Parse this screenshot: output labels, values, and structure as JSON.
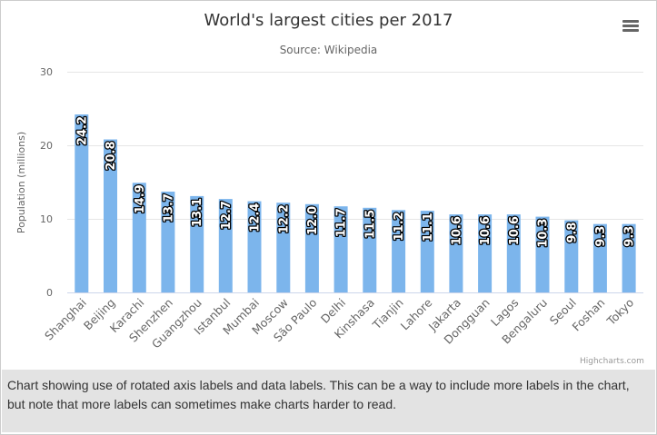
{
  "title": "World's largest cities per 2017",
  "subtitle": "Source: Wikipedia",
  "credits": "Highcharts.com",
  "caption": "Chart showing use of rotated axis labels and data labels. This can be a way to include more labels in the chart, but note that more labels can sometimes make charts harder to read.",
  "menu_icon": "hamburger-menu-icon",
  "colors": {
    "bar": "#7cb5ec",
    "data_label": "#ffffff",
    "data_label_outline": "#000000",
    "grid": "#e6e6e6",
    "axis_text": "#666666",
    "caption_bg": "#e3e3e3"
  },
  "chart_data": {
    "type": "bar",
    "title": "World's largest cities per 2017",
    "subtitle": "Source: Wikipedia",
    "xlabel": "",
    "ylabel": "Population (millions)",
    "ylim": [
      0,
      30
    ],
    "yticks": [
      0,
      10,
      20,
      30
    ],
    "grid": true,
    "legend": "none",
    "categories": [
      "Shanghai",
      "Beijing",
      "Karachi",
      "Shenzhen",
      "Guangzhou",
      "Istanbul",
      "Mumbai",
      "Moscow",
      "São Paulo",
      "Delhi",
      "Kinshasa",
      "Tianjin",
      "Lahore",
      "Jakarta",
      "Dongguan",
      "Lagos",
      "Bengaluru",
      "Seoul",
      "Foshan",
      "Tokyo"
    ],
    "values": [
      24.2,
      20.8,
      14.9,
      13.7,
      13.1,
      12.7,
      12.4,
      12.2,
      12.0,
      11.7,
      11.5,
      11.2,
      11.1,
      10.6,
      10.6,
      10.6,
      10.3,
      9.8,
      9.3,
      9.3
    ],
    "data_labels": [
      "24.2",
      "20.8",
      "14.9",
      "13.7",
      "13.1",
      "12.7",
      "12.4",
      "12.2",
      "12.0",
      "11.7",
      "11.5",
      "11.2",
      "11.1",
      "10.6",
      "10.6",
      "10.6",
      "10.3",
      "9.8",
      "9.3",
      "9.3"
    ]
  }
}
